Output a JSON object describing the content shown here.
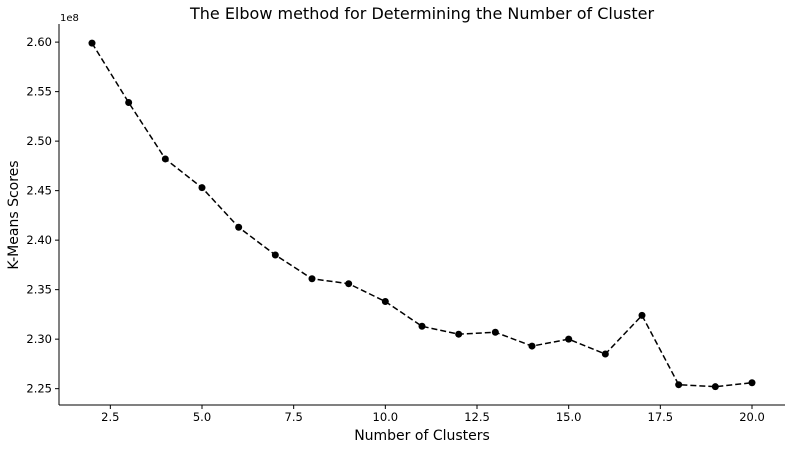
{
  "chart_data": {
    "type": "line",
    "title": "The Elbow method for Determining the Number of Cluster",
    "xlabel": "Number of Clusters",
    "ylabel": "K-Means Scores",
    "y_offset_label": "1e8",
    "xlim": [
      1.1,
      20.9
    ],
    "ylim": [
      2.2335,
      2.6183
    ],
    "x_ticks": [
      2.5,
      5.0,
      7.5,
      10.0,
      12.5,
      15.0,
      17.5,
      20.0
    ],
    "x_tick_labels": [
      "2.5",
      "5.0",
      "7.5",
      "10.0",
      "12.5",
      "15.0",
      "17.5",
      "20.0"
    ],
    "y_ticks": [
      2.25,
      2.3,
      2.35,
      2.4,
      2.45,
      2.5,
      2.55,
      2.6
    ],
    "y_tick_labels": [
      "2.25",
      "2.30",
      "2.35",
      "2.40",
      "2.45",
      "2.50",
      "2.55",
      "2.60"
    ],
    "grid": false,
    "line_style": "dashed",
    "marker": "circle",
    "color": "#000000",
    "series": [
      {
        "x": [
          2,
          3,
          4,
          5,
          6,
          7,
          8,
          9,
          10,
          11,
          12,
          13,
          14,
          15,
          16,
          17,
          18,
          19,
          20
        ],
        "values": [
          2.599,
          2.539,
          2.482,
          2.453,
          2.413,
          2.385,
          2.361,
          2.356,
          2.338,
          2.313,
          2.305,
          2.307,
          2.293,
          2.3,
          2.285,
          2.324,
          2.254,
          2.252,
          2.256
        ]
      }
    ]
  }
}
